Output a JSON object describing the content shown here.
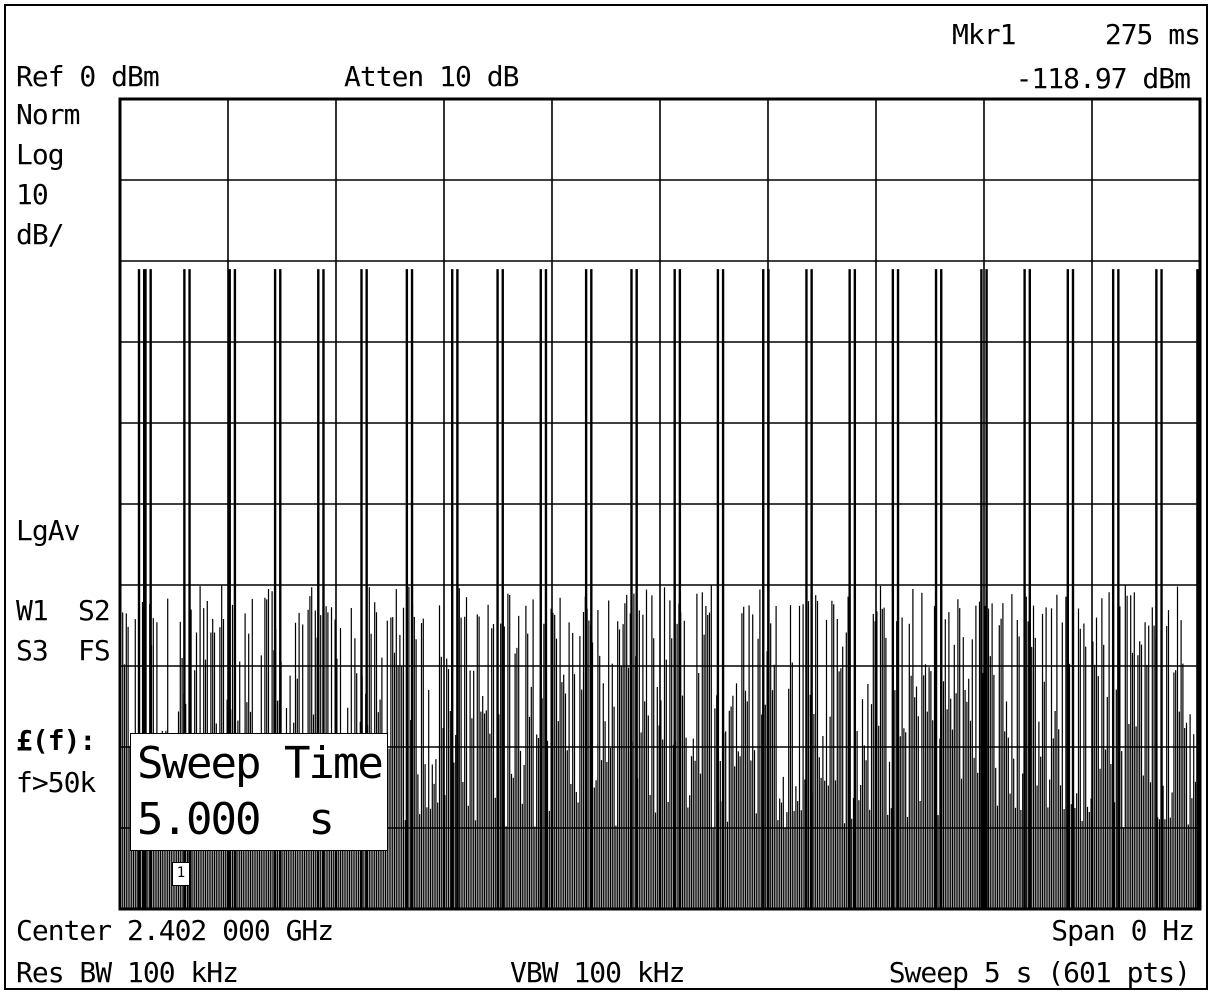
{
  "header": {
    "ref_level": "Ref 0 dBm",
    "attenuation": "Atten 10 dB",
    "marker_label": "Mkr1",
    "marker_time": "275 ms",
    "marker_level": "-118.97 dBm"
  },
  "left_annotations": {
    "detector_mode": "Norm",
    "scale_type": "Log",
    "scale_value": "10",
    "scale_unit": "dB/",
    "average_mode": "LgAv",
    "trace_w1": "W1",
    "trace_s2": "S2",
    "trace_s3": "S3",
    "trace_fs": "FS",
    "phase_noise_label": "£(f):",
    "phase_noise_offset": "f>50k"
  },
  "footer": {
    "center": "Center 2.402 000 GHz",
    "span": "Span 0 Hz",
    "res_bw": "Res BW 100 kHz",
    "vbw": "VBW 100 kHz",
    "sweep": "Sweep 5 s (601 pts)"
  },
  "sweep_popup": {
    "title": "Sweep Time",
    "value": "5.000  s"
  },
  "marker_tag": "1",
  "chart_data": {
    "type": "line",
    "title": "",
    "xlabel": "",
    "ylabel": "",
    "x_unit": "s",
    "y_unit": "dBm",
    "xlim": [
      0,
      5
    ],
    "ylim": [
      -100,
      0
    ],
    "grid": true,
    "grid_divisions_x": 10,
    "grid_divisions_y": 10,
    "reference_level_dbm": 0,
    "scale_db_per_div": 10,
    "marker": {
      "label": "1",
      "x": 0.275,
      "y": -118.97
    },
    "pulse_peak_dbm": -21,
    "noise_floor_top_dbm": -60,
    "noise_floor_bottom_dbm": -90,
    "pulse_times": [
      0.1,
      0.13,
      0.31,
      0.52,
      0.73,
      0.93,
      1.13,
      1.34,
      1.55,
      1.76,
      1.96,
      2.17,
      2.38,
      2.58,
      2.78,
      2.99,
      3.19,
      3.39,
      3.59,
      3.79,
      4.0,
      4.2,
      4.4,
      4.61,
      4.81,
      5.0
    ]
  }
}
